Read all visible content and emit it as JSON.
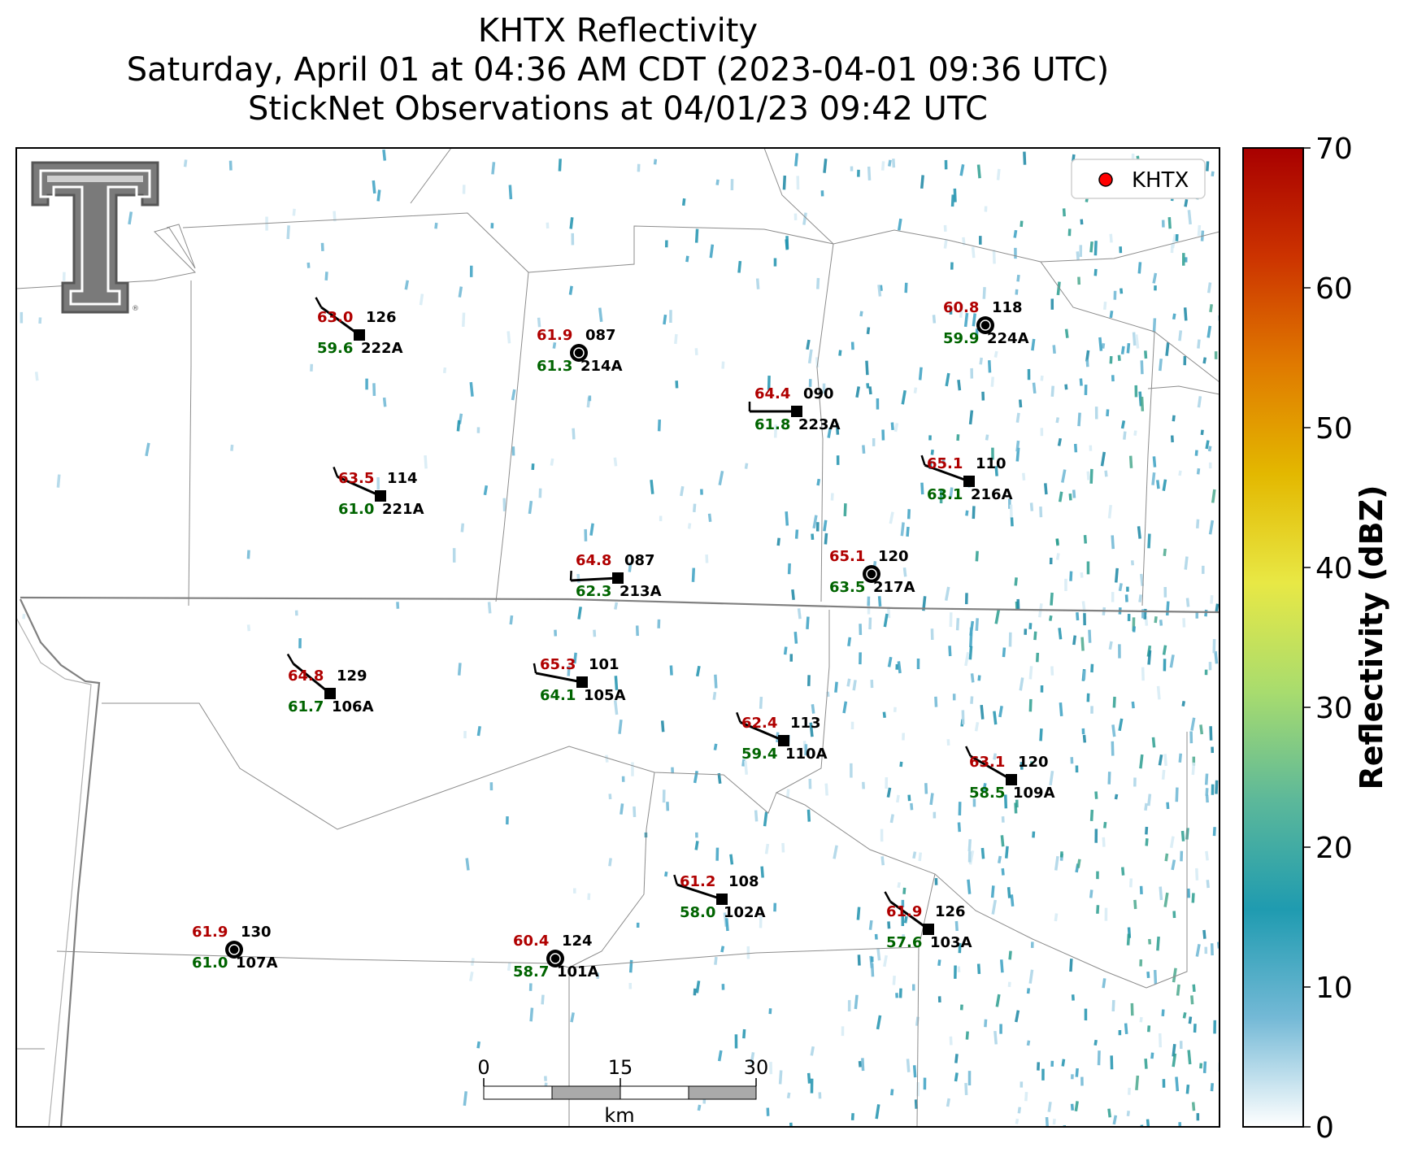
{
  "title": {
    "line1": "KHTX Reflectivity",
    "line2": "Saturday, April 01 at 04:36 AM CDT (2023-04-01 09:36 UTC)",
    "line3": "StickNet Observations at 04/01/23 09:42 UTC"
  },
  "legend": {
    "label": "KHTX",
    "marker_color": "#ff0000"
  },
  "colorbar": {
    "label": "Reflectivity (dBZ)",
    "ticks": [
      "0",
      "10",
      "20",
      "30",
      "40",
      "50",
      "60",
      "70"
    ],
    "range": [
      0,
      70
    ],
    "colors": [
      "#ffffff",
      "#74b9d6",
      "#1f9bb0",
      "#5cb89a",
      "#a8dc6e",
      "#e8e845",
      "#e3b800",
      "#e07a00",
      "#cc3300",
      "#a80000"
    ]
  },
  "scalebar": {
    "ticks": [
      "0",
      "15",
      "30"
    ],
    "unit": "km"
  },
  "logo": {
    "name": "texas-tech-double-t-logo",
    "mark": "®"
  },
  "stations": [
    {
      "id": "222A",
      "temp": "63.0",
      "dew": "59.6",
      "dir": "126",
      "calm": false
    },
    {
      "id": "214A",
      "temp": "61.9",
      "dew": "61.3",
      "dir": "087",
      "calm": true
    },
    {
      "id": "224A",
      "temp": "60.8",
      "dew": "59.9",
      "dir": "118",
      "calm": true
    },
    {
      "id": "223A",
      "temp": "64.4",
      "dew": "61.8",
      "dir": "090",
      "calm": false
    },
    {
      "id": "221A",
      "temp": "63.5",
      "dew": "61.0",
      "dir": "114",
      "calm": false
    },
    {
      "id": "216A",
      "temp": "65.1",
      "dew": "63.1",
      "dir": "110",
      "calm": false
    },
    {
      "id": "213A",
      "temp": "64.8",
      "dew": "62.3",
      "dir": "087",
      "calm": false
    },
    {
      "id": "217A",
      "temp": "65.1",
      "dew": "63.5",
      "dir": "120",
      "calm": true
    },
    {
      "id": "106A",
      "temp": "64.8",
      "dew": "61.7",
      "dir": "129",
      "calm": false
    },
    {
      "id": "105A",
      "temp": "65.3",
      "dew": "64.1",
      "dir": "101",
      "calm": false
    },
    {
      "id": "110A",
      "temp": "62.4",
      "dew": "59.4",
      "dir": "113",
      "calm": false
    },
    {
      "id": "109A",
      "temp": "63.1",
      "dew": "58.5",
      "dir": "120",
      "calm": false
    },
    {
      "id": "102A",
      "temp": "61.2",
      "dew": "58.0",
      "dir": "108",
      "calm": false
    },
    {
      "id": "103A",
      "temp": "61.9",
      "dew": "57.6",
      "dir": "126",
      "calm": false
    },
    {
      "id": "107A",
      "temp": "61.9",
      "dew": "61.0",
      "dir": "130",
      "calm": true
    },
    {
      "id": "101A",
      "temp": "60.4",
      "dew": "58.7",
      "dir": "124",
      "calm": true
    }
  ]
}
